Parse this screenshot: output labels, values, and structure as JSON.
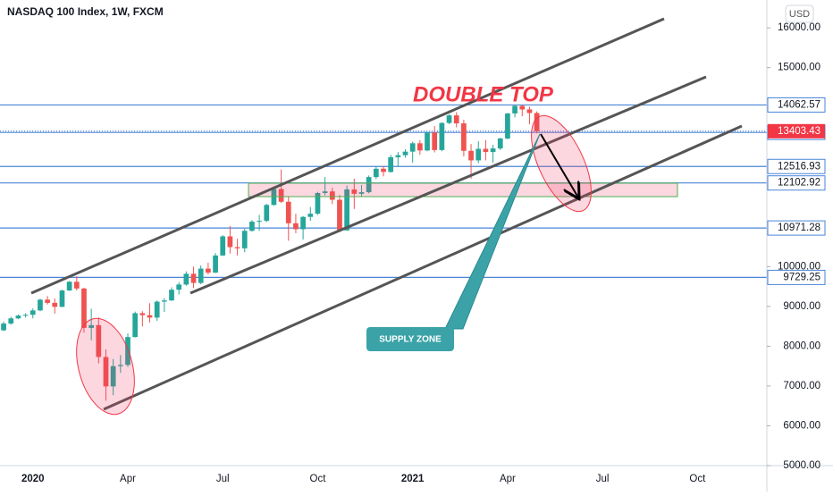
{
  "chart_data": {
    "type": "candlestick",
    "title": "NASDAQ 100 Index, 1W, FXCM",
    "currency": "USD",
    "annotations": [
      "DOUBLE TOP",
      "SUPPLY ZONE"
    ],
    "categories": [
      null,
      null,
      null,
      null,
      "2020",
      null,
      null,
      null,
      null,
      null,
      null,
      null,
      null,
      null,
      null,
      null,
      null,
      "Apr",
      null,
      null,
      null,
      null,
      null,
      null,
      null,
      null,
      null,
      null,
      null,
      null,
      "Jul",
      null,
      null,
      null,
      null,
      null,
      null,
      null,
      null,
      null,
      null,
      null,
      null,
      "Oct",
      null,
      null,
      null,
      null,
      null,
      null,
      null,
      null,
      null,
      null,
      null,
      null,
      "2021",
      null,
      null,
      null,
      null,
      null,
      null,
      null,
      null,
      null,
      null,
      null,
      null,
      "Apr",
      null,
      null,
      null,
      null,
      null,
      null,
      null,
      null,
      null,
      null,
      null,
      null,
      "Jul",
      null,
      null,
      null,
      null,
      null,
      null,
      null,
      null,
      null,
      null,
      null,
      null,
      "Oct",
      null,
      null,
      null,
      null,
      null,
      null,
      null,
      null,
      null
    ],
    "open": [
      8400,
      8570,
      8700,
      8770,
      8790,
      8900,
      9170,
      9090,
      8990,
      9400,
      9620,
      9450,
      8460,
      8530,
      7730,
      6990,
      7500,
      7530,
      8230,
      8830,
      8780,
      8720,
      9120,
      9150,
      9420,
      9550,
      9820,
      9590,
      9950,
      9850,
      10280,
      10760,
      10490,
      10460,
      10900,
      11130,
      11150,
      11550,
      11950,
      11630,
      11090,
      10940,
      11250,
      11330,
      11850,
      11890,
      11680,
      10910,
      11940,
      11830,
      11870,
      12250,
      12460,
      12380,
      12750,
      12800,
      12890,
      13100,
      12920,
      13370,
      12930,
      13610,
      13800,
      13600,
      12910,
      12670,
      12960,
      12880,
      12970,
      13220,
      13850,
      14040,
      13950,
      13860,
      null,
      null,
      null,
      null,
      null,
      null,
      null,
      null,
      null,
      null,
      null,
      null,
      null,
      null,
      null,
      null,
      null,
      null,
      null,
      null,
      null,
      null,
      null,
      null,
      null,
      null,
      null,
      null,
      null,
      null,
      null
    ],
    "high": [
      8620,
      8740,
      8800,
      8830,
      8950,
      9190,
      9260,
      9200,
      9420,
      9640,
      9760,
      9470,
      8940,
      8720,
      7920,
      7680,
      7780,
      8320,
      8870,
      8880,
      9080,
      9150,
      9210,
      9480,
      9610,
      9880,
      10000,
      10030,
      10100,
      10340,
      10790,
      11020,
      10700,
      10950,
      11170,
      11300,
      11580,
      11980,
      12440,
      11750,
      11330,
      11270,
      11500,
      11880,
      12250,
      11980,
      11800,
      12040,
      12210,
      12050,
      12290,
      12530,
      12530,
      12810,
      12880,
      12950,
      13140,
      13180,
      13390,
      13530,
      13630,
      13830,
      13880,
      13690,
      13080,
      13150,
      13180,
      13060,
      13240,
      13860,
      14060,
      14060,
      14020,
      13900,
      null,
      null,
      null,
      null,
      null,
      null,
      null,
      null,
      null,
      null,
      null,
      null,
      null,
      null,
      null,
      null,
      null,
      null,
      null,
      null,
      null,
      null,
      null,
      null,
      null,
      null,
      null,
      null,
      null,
      null,
      null
    ],
    "low": [
      8380,
      8540,
      8680,
      8720,
      8700,
      8880,
      9050,
      8820,
      8980,
      9390,
      9400,
      8340,
      8150,
      7570,
      6630,
      6770,
      7330,
      7480,
      8220,
      8500,
      8600,
      8640,
      8860,
      9140,
      9300,
      9520,
      9460,
      9560,
      9800,
      9840,
      10270,
      10330,
      10280,
      10360,
      10880,
      10900,
      11120,
      11530,
      11600,
      10650,
      10840,
      10680,
      11150,
      11300,
      11790,
      11570,
      10870,
      10900,
      11450,
      11760,
      11840,
      12200,
      12270,
      12360,
      12510,
      12740,
      12610,
      12810,
      12900,
      12870,
      12900,
      13580,
      13500,
      12770,
      12210,
      12600,
      12670,
      12610,
      12930,
      13200,
      13750,
      13780,
      13580,
      13350,
      null,
      null,
      null,
      null,
      null,
      null,
      null,
      null,
      null,
      null,
      null,
      null,
      null,
      null,
      null,
      null,
      null,
      null,
      null,
      null,
      null,
      null,
      null,
      null,
      null,
      null,
      null,
      null,
      null,
      null,
      null
    ],
    "close": [
      8570,
      8700,
      8770,
      8790,
      8900,
      9170,
      9090,
      8990,
      9400,
      9620,
      9450,
      8460,
      8530,
      7730,
      6990,
      7500,
      7530,
      8230,
      8830,
      8780,
      8720,
      9120,
      9150,
      9420,
      9550,
      9820,
      9590,
      9950,
      9850,
      10280,
      10760,
      10490,
      10460,
      10900,
      11130,
      11150,
      11550,
      11950,
      11630,
      11090,
      10940,
      11250,
      11330,
      11850,
      11890,
      11680,
      10910,
      11940,
      11830,
      11870,
      12250,
      12460,
      12380,
      12750,
      12800,
      12890,
      13100,
      12920,
      13370,
      12930,
      13610,
      13800,
      13600,
      12910,
      12670,
      12960,
      12880,
      12970,
      13220,
      13850,
      14040,
      13950,
      13860,
      13403.43,
      null,
      null,
      null,
      null,
      null,
      null,
      null,
      null,
      null,
      null,
      null,
      null,
      null,
      null,
      null,
      null,
      null,
      null,
      null,
      null,
      null,
      null,
      null,
      null,
      null,
      null,
      null,
      null,
      null,
      null,
      null
    ],
    "up_color": "#26a69a",
    "down_color": "#ef5350",
    "levels": [
      14062.57,
      13372.55,
      12516.93,
      12102.92,
      10971.28,
      9729.25
    ],
    "level_color": "#4a86d8",
    "ylim": [
      5000,
      16700
    ],
    "yticks": [
      {
        "value": 5000,
        "label": "5000.00"
      },
      {
        "value": 6000,
        "label": "6000.00"
      },
      {
        "value": 7000,
        "label": "7000.00"
      },
      {
        "value": 8000,
        "label": "8000.00"
      },
      {
        "value": 9000,
        "label": "9000.00"
      },
      {
        "value": 10000,
        "label": "10000.00"
      },
      {
        "value": 15000,
        "label": "15000.00"
      },
      {
        "value": 16000,
        "label": "16000.00"
      }
    ],
    "grid": false
  }
}
